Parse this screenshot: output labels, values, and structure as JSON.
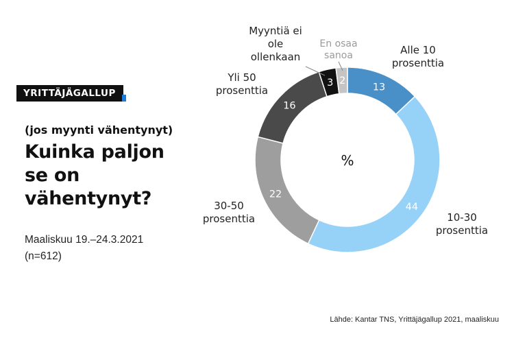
{
  "brand": {
    "label": "YRITTÄJÄGALLUP",
    "accent_color": "#1e7bd6"
  },
  "subtitle": "(jos myynti vähentynyt)",
  "title": "Kuinka paljon se on vähentynyt?",
  "date": "Maaliskuu 19.–24.3.2021",
  "sample": "(n=612)",
  "source": "Lähde: Kantar TNS, Yrittäjägallup 2021, maaliskuu",
  "chart_data": {
    "type": "pie",
    "variant": "donut",
    "center_label": "%",
    "unit": "%",
    "slices": [
      {
        "label": [
          "Alle 10",
          "prosenttia"
        ],
        "value": 13,
        "color": "#4a90c8",
        "value_color": "#ffffff"
      },
      {
        "label": [
          "10-30",
          "prosenttia"
        ],
        "value": 44,
        "color": "#96d1f7",
        "value_color": "#ffffff"
      },
      {
        "label": [
          "30-50",
          "prosenttia"
        ],
        "value": 22,
        "color": "#9e9e9e",
        "value_color": "#ffffff"
      },
      {
        "label": [
          "Yli 50",
          "prosenttia"
        ],
        "value": 16,
        "color": "#4a4a4a",
        "value_color": "#ffffff"
      },
      {
        "label": [
          "Myyntiä ei",
          "ole",
          "ollenkaan"
        ],
        "value": 3,
        "color": "#121212",
        "value_color": "#ffffff"
      },
      {
        "label": [
          "En osaa",
          "sanoa"
        ],
        "value": 2,
        "color": "#c4c4c4",
        "value_color": "#ffffff",
        "muted": true
      }
    ]
  }
}
